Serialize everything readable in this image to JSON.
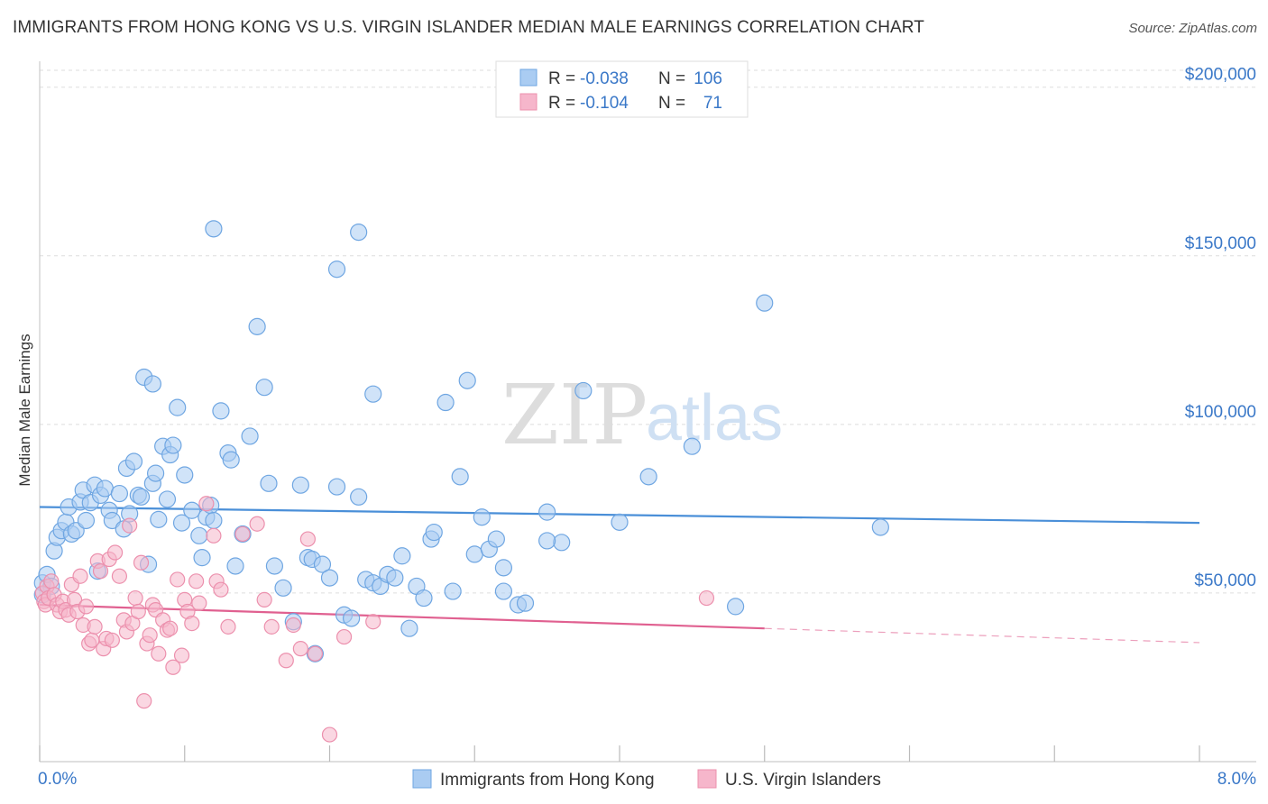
{
  "title": "IMMIGRANTS FROM HONG KONG VS U.S. VIRGIN ISLANDER MEDIAN MALE EARNINGS CORRELATION CHART",
  "source": "Source: ZipAtlas.com",
  "watermark": {
    "zip": "ZIP",
    "atlas": "atlas"
  },
  "legend_top": {
    "rows": [
      {
        "r_label": "R =",
        "r_value": "-0.038",
        "n_label": "N =",
        "n_value": "106",
        "color": "#aaccf2"
      },
      {
        "r_label": "R =",
        "r_value": "-0.104",
        "n_label": "N =",
        "n_value": "71",
        "color": "#f6b6cb"
      }
    ]
  },
  "legend_bottom": {
    "items": [
      {
        "label": "Immigrants from Hong Kong",
        "color": "#aaccf2"
      },
      {
        "label": "U.S. Virgin Islanders",
        "color": "#f6b6cb"
      }
    ]
  },
  "chart_data": {
    "type": "scatter",
    "ylabel": "Median Male Earnings",
    "x_tick_labels": {
      "left": "0.0%",
      "right": "8.0%"
    },
    "y_tick_labels": [
      "$50,000",
      "$100,000",
      "$150,000",
      "$200,000"
    ],
    "y_ticks": [
      50000,
      100000,
      150000,
      200000
    ],
    "xlim": [
      0,
      8
    ],
    "ylim": [
      0,
      205000
    ],
    "grid": true,
    "series": [
      {
        "name": "Immigrants from Hong Kong",
        "color": "#4a8fd8",
        "fill": "#aaccf2",
        "trend": {
          "x": [
            0.0,
            8.0
          ],
          "y": [
            75500,
            70800
          ]
        },
        "points": [
          [
            0.02,
            53000
          ],
          [
            0.05,
            55500
          ],
          [
            0.08,
            52000
          ],
          [
            0.1,
            62500
          ],
          [
            0.12,
            66500
          ],
          [
            0.15,
            68500
          ],
          [
            0.18,
            71000
          ],
          [
            0.2,
            75500
          ],
          [
            0.22,
            67500
          ],
          [
            0.25,
            68500
          ],
          [
            0.28,
            77000
          ],
          [
            0.3,
            80500
          ],
          [
            0.32,
            71500
          ],
          [
            0.35,
            76800
          ],
          [
            0.38,
            82000
          ],
          [
            0.4,
            56500
          ],
          [
            0.42,
            79000
          ],
          [
            0.45,
            81000
          ],
          [
            0.48,
            74500
          ],
          [
            0.5,
            71500
          ],
          [
            0.55,
            79500
          ],
          [
            0.58,
            69000
          ],
          [
            0.6,
            87000
          ],
          [
            0.62,
            73500
          ],
          [
            0.65,
            89000
          ],
          [
            0.68,
            79000
          ],
          [
            0.7,
            78500
          ],
          [
            0.75,
            58500
          ],
          [
            0.78,
            82500
          ],
          [
            0.8,
            85500
          ],
          [
            0.82,
            71800
          ],
          [
            0.85,
            93500
          ],
          [
            0.88,
            77800
          ],
          [
            0.9,
            91000
          ],
          [
            0.92,
            93800
          ],
          [
            0.95,
            105000
          ],
          [
            0.98,
            70800
          ],
          [
            1.0,
            85000
          ],
          [
            1.05,
            74500
          ],
          [
            1.1,
            67000
          ],
          [
            1.12,
            60500
          ],
          [
            1.15,
            72500
          ],
          [
            1.18,
            76000
          ],
          [
            1.2,
            71500
          ],
          [
            1.25,
            104000
          ],
          [
            1.3,
            91500
          ],
          [
            1.32,
            89500
          ],
          [
            1.35,
            58000
          ],
          [
            1.4,
            67500
          ],
          [
            1.45,
            96500
          ],
          [
            1.5,
            129000
          ],
          [
            1.55,
            111000
          ],
          [
            1.58,
            82500
          ],
          [
            1.62,
            58000
          ],
          [
            1.68,
            51500
          ],
          [
            1.75,
            41500
          ],
          [
            1.8,
            82000
          ],
          [
            1.85,
            60500
          ],
          [
            1.88,
            60000
          ],
          [
            1.9,
            32000
          ],
          [
            1.95,
            58500
          ],
          [
            2.0,
            54500
          ],
          [
            2.05,
            81500
          ],
          [
            2.1,
            43500
          ],
          [
            2.15,
            42500
          ],
          [
            2.2,
            78500
          ],
          [
            2.25,
            54000
          ],
          [
            2.3,
            53000
          ],
          [
            2.35,
            52000
          ],
          [
            2.4,
            55500
          ],
          [
            2.45,
            54500
          ],
          [
            2.5,
            61000
          ],
          [
            2.55,
            39500
          ],
          [
            2.6,
            52000
          ],
          [
            2.65,
            48500
          ],
          [
            2.7,
            66000
          ],
          [
            2.72,
            68000
          ],
          [
            2.8,
            106500
          ],
          [
            2.85,
            50500
          ],
          [
            2.9,
            84500
          ],
          [
            2.95,
            113000
          ],
          [
            3.0,
            61500
          ],
          [
            3.05,
            72500
          ],
          [
            3.1,
            63000
          ],
          [
            3.15,
            66000
          ],
          [
            3.2,
            57500
          ],
          [
            3.3,
            46500
          ],
          [
            3.35,
            47000
          ],
          [
            3.5,
            74000
          ],
          [
            3.6,
            65000
          ],
          [
            3.75,
            110000
          ],
          [
            4.0,
            71000
          ],
          [
            4.2,
            84500
          ],
          [
            4.5,
            93500
          ],
          [
            5.0,
            136000
          ],
          [
            5.8,
            69500
          ],
          [
            1.2,
            158000
          ],
          [
            2.05,
            146000
          ],
          [
            2.2,
            157000
          ],
          [
            0.72,
            114000
          ],
          [
            0.78,
            112000
          ],
          [
            2.3,
            109000
          ],
          [
            3.5,
            65500
          ],
          [
            4.8,
            46000
          ],
          [
            3.2,
            50500
          ],
          [
            0.02,
            49500
          ]
        ]
      },
      {
        "name": "U.S. Virgin Islanders",
        "color": "#e06090",
        "fill": "#f6b6cb",
        "trend": {
          "x": [
            0.0,
            5.0
          ],
          "y": [
            46500,
            39500
          ]
        },
        "trend_extension": {
          "x": [
            5.0,
            8.0
          ],
          "y": [
            39500,
            35300
          ]
        },
        "points": [
          [
            0.02,
            50000
          ],
          [
            0.03,
            47500
          ],
          [
            0.04,
            46500
          ],
          [
            0.05,
            52000
          ],
          [
            0.06,
            48500
          ],
          [
            0.08,
            53500
          ],
          [
            0.1,
            49500
          ],
          [
            0.12,
            46500
          ],
          [
            0.14,
            44500
          ],
          [
            0.16,
            47500
          ],
          [
            0.18,
            45000
          ],
          [
            0.2,
            43500
          ],
          [
            0.22,
            52500
          ],
          [
            0.24,
            48000
          ],
          [
            0.26,
            44500
          ],
          [
            0.28,
            55000
          ],
          [
            0.3,
            40500
          ],
          [
            0.32,
            46000
          ],
          [
            0.34,
            35000
          ],
          [
            0.36,
            36000
          ],
          [
            0.38,
            40000
          ],
          [
            0.4,
            59500
          ],
          [
            0.42,
            56500
          ],
          [
            0.44,
            33500
          ],
          [
            0.46,
            36500
          ],
          [
            0.48,
            60000
          ],
          [
            0.5,
            36000
          ],
          [
            0.52,
            62000
          ],
          [
            0.55,
            55000
          ],
          [
            0.58,
            42000
          ],
          [
            0.6,
            38500
          ],
          [
            0.62,
            70000
          ],
          [
            0.64,
            41000
          ],
          [
            0.66,
            48500
          ],
          [
            0.68,
            44500
          ],
          [
            0.7,
            59000
          ],
          [
            0.72,
            18000
          ],
          [
            0.74,
            35000
          ],
          [
            0.76,
            37500
          ],
          [
            0.78,
            46500
          ],
          [
            0.8,
            45000
          ],
          [
            0.82,
            32000
          ],
          [
            0.85,
            42000
          ],
          [
            0.88,
            39000
          ],
          [
            0.9,
            39500
          ],
          [
            0.92,
            28000
          ],
          [
            0.95,
            54000
          ],
          [
            0.98,
            31500
          ],
          [
            1.0,
            48000
          ],
          [
            1.02,
            44500
          ],
          [
            1.05,
            41000
          ],
          [
            1.08,
            53500
          ],
          [
            1.1,
            47000
          ],
          [
            1.15,
            76500
          ],
          [
            1.2,
            67000
          ],
          [
            1.22,
            53500
          ],
          [
            1.3,
            40000
          ],
          [
            1.4,
            67500
          ],
          [
            1.5,
            70500
          ],
          [
            1.55,
            48000
          ],
          [
            1.6,
            40000
          ],
          [
            1.7,
            30000
          ],
          [
            1.75,
            40500
          ],
          [
            1.8,
            33500
          ],
          [
            1.85,
            66000
          ],
          [
            1.9,
            32000
          ],
          [
            2.0,
            8000
          ],
          [
            2.1,
            37000
          ],
          [
            2.3,
            41500
          ],
          [
            4.6,
            48500
          ],
          [
            1.25,
            51000
          ]
        ]
      }
    ]
  }
}
